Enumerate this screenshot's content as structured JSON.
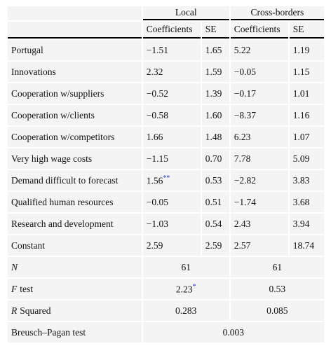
{
  "table": {
    "groups": [
      "Local",
      "Cross-borders"
    ],
    "columns": [
      "Coefficients",
      "SE",
      "Coefficients",
      "SE"
    ],
    "rows": [
      [
        "Portugal",
        "−1.51",
        "1.65",
        "5.22",
        "1.19"
      ],
      [
        "Innovations",
        "2.32",
        "1.59",
        "−0.05",
        "1.15"
      ],
      [
        "Cooperation w/suppliers",
        "−0.52",
        "1.39",
        "−0.17",
        "1.01"
      ],
      [
        "Cooperation w/clients",
        "−0.58",
        "1.60",
        "−8.37",
        "1.16"
      ],
      [
        "Cooperation w/competitors",
        "1.66",
        "1.48",
        "6.23",
        "1.07"
      ],
      [
        "Very high wage costs",
        "−1.15",
        "0.70",
        "7.78",
        "5.09"
      ],
      [
        "Demand difficult to forecast",
        {
          "text": "1.56",
          "sup": "**"
        },
        "0.53",
        "−2.82",
        "3.83"
      ],
      [
        "Qualified human resources",
        "−0.05",
        "0.51",
        "−1.74",
        "3.68"
      ],
      [
        "Research and development",
        "−1.03",
        "0.54",
        "2.43",
        "3.94"
      ],
      [
        "Constant",
        "2.59",
        "2.59",
        "2.57",
        "18.74"
      ]
    ],
    "stats": [
      {
        "symbol": "N",
        "values": [
          "61",
          "61"
        ]
      },
      {
        "symbol": "F",
        "label": "test",
        "values": [
          {
            "text": "2.23",
            "sup": "*"
          },
          "0.53"
        ]
      },
      {
        "symbol": "R",
        "label": "Squared",
        "values": [
          "0.283",
          "0.085"
        ]
      },
      {
        "label": "Breusch–Pagan test",
        "values": [
          "0.003"
        ]
      }
    ]
  }
}
